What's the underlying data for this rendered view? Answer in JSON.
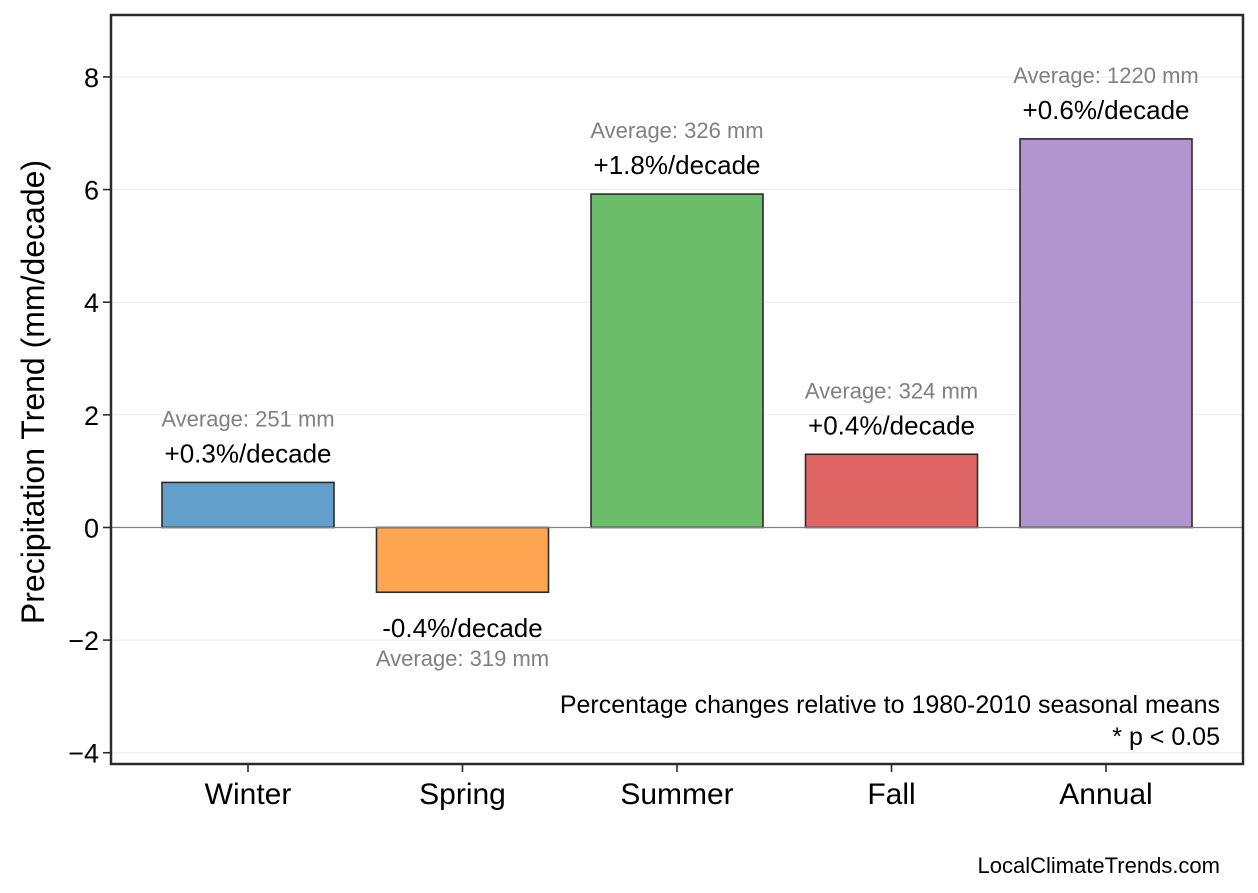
{
  "chart_data": {
    "type": "bar",
    "categories": [
      "Winter",
      "Spring",
      "Summer",
      "Fall",
      "Annual"
    ],
    "values": [
      0.8,
      -1.15,
      5.92,
      1.3,
      6.9
    ],
    "colors": [
      "#629fcb",
      "#fea552",
      "#6bbd6b",
      "#e06666",
      "#b294cf"
    ],
    "percent_labels": [
      "+0.3%/decade",
      "-0.4%/decade",
      "+1.8%/decade",
      "+0.4%/decade",
      "+0.6%/decade"
    ],
    "average_labels": [
      "Average: 251 mm",
      "Average: 319 mm",
      "Average: 326 mm",
      "Average: 324 mm",
      "Average: 1220 mm"
    ],
    "ylabel": "Precipitation Trend (mm/decade)",
    "xlabel": "",
    "ylim": [
      -4.2,
      9.1
    ],
    "yticks": [
      -4,
      -2,
      0,
      2,
      4,
      6,
      8
    ],
    "ytick_labels": [
      "−4",
      "−2",
      "0",
      "2",
      "4",
      "6",
      "8"
    ],
    "grid": true,
    "zero_line": true
  },
  "annotation": {
    "line1": "Percentage changes relative to 1980-2010 seasonal means",
    "line2": "* p < 0.05"
  },
  "credit": "LocalClimateTrends.com"
}
